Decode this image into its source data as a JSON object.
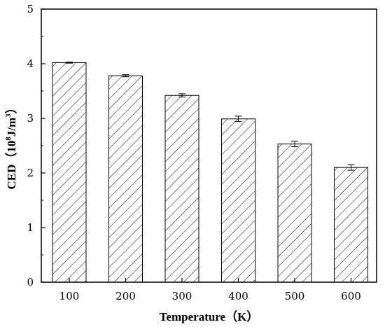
{
  "chart_data": {
    "type": "bar",
    "categories": [
      "100",
      "200",
      "300",
      "400",
      "500",
      "600"
    ],
    "values": [
      4.02,
      3.78,
      3.42,
      2.99,
      2.53,
      2.1
    ],
    "errors": [
      0.01,
      0.02,
      0.03,
      0.05,
      0.05,
      0.05
    ],
    "ylim": [
      0,
      5
    ],
    "yticks": [
      "0",
      "1",
      "2",
      "3",
      "4",
      "5"
    ],
    "xlabel": "Temperature（K）",
    "ylabel_main": "CED（10",
    "ylabel_exp1": "8",
    "ylabel_mid": "J/m",
    "ylabel_exp2": "3",
    "ylabel_end": "）",
    "bar_fill": "#ffffff",
    "bar_stroke": "#000000",
    "hatch_color": "#000000",
    "grid": false,
    "legend": false
  }
}
